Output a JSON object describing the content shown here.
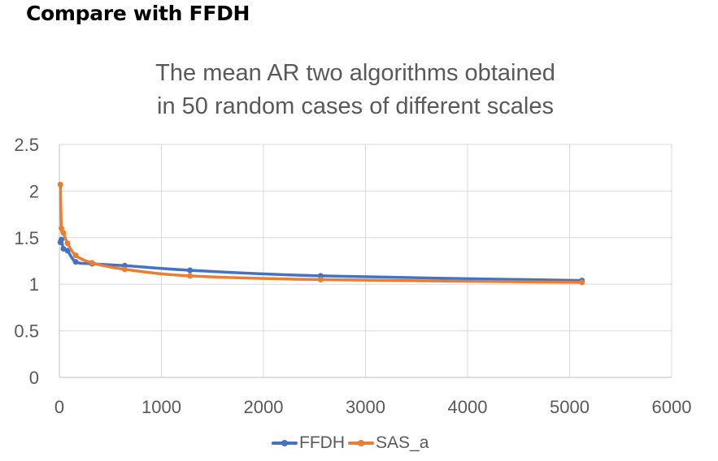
{
  "page": {
    "heading": "Compare with FFDH"
  },
  "chart_data": {
    "type": "line",
    "title_lines": [
      "The mean AR two algorithms obtained",
      "in 50 random cases of different scales"
    ],
    "xlim": [
      0,
      6000
    ],
    "ylim": [
      0,
      2.5
    ],
    "x_ticks": [
      0,
      1000,
      2000,
      3000,
      4000,
      5000,
      6000
    ],
    "y_ticks": [
      0,
      0.5,
      1,
      1.5,
      2,
      2.5
    ],
    "y_tick_labels": [
      "0",
      "0.5",
      "1",
      "1.5",
      "2",
      "2.5"
    ],
    "grid": true,
    "legend_position": "bottom",
    "series": [
      {
        "name": "FFDH",
        "color": "#4472C4",
        "x": [
          10,
          20,
          40,
          80,
          160,
          320,
          640,
          1280,
          2560,
          5120
        ],
        "y": [
          1.45,
          1.48,
          1.38,
          1.36,
          1.24,
          1.22,
          1.2,
          1.15,
          1.09,
          1.04
        ]
      },
      {
        "name": "SAS_a",
        "color": "#ED7D31",
        "x": [
          10,
          20,
          40,
          80,
          160,
          320,
          640,
          1280,
          2560,
          5120
        ],
        "y": [
          2.07,
          1.6,
          1.55,
          1.44,
          1.31,
          1.23,
          1.16,
          1.09,
          1.05,
          1.02
        ]
      }
    ]
  }
}
